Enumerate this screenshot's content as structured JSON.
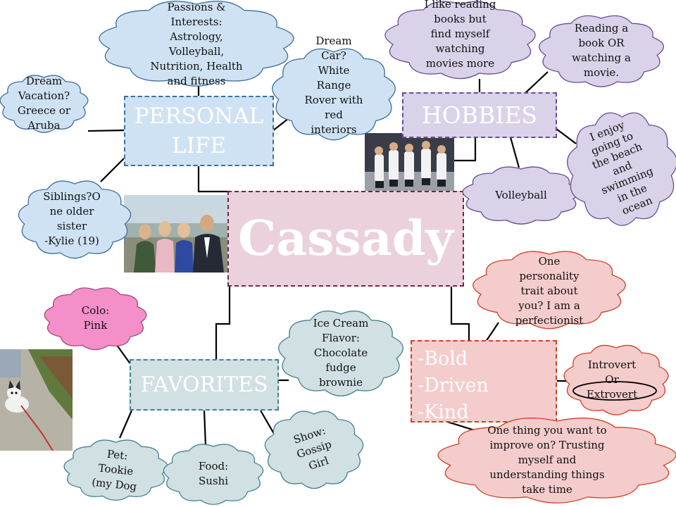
{
  "center": {
    "title": "Cassady"
  },
  "sections": {
    "personal": "PERSONAL\nLIFE",
    "hobbies": "HOBBIES",
    "favorites": "FAVORITES",
    "traits": "-Bold\n-Driven\n-Kind"
  },
  "clouds": {
    "passions": "Passions &\nInterests:\nAstrology,\nVolleyball,\nNutrition, Health\nand fitness",
    "dream_car": "Dream\nCar?\nWhite\nRange\nRover with\nred\ninteriors",
    "dream_vacation": "Dream\nVacation?\nGreece or\nAruba",
    "siblings": "Siblings?O\nne older\nsister\n-Kylie (19)",
    "reading_pref": "I like reading\nbooks but\nfind myself\nwatching\nmovies more",
    "book_or_movie": "Reading a\nbook OR\nwatching a\nmovie.",
    "volleyball": "Volleyball",
    "beach": "I enjoy\ngoing to\nthe beach\nand\nswimming\nin the\nocean",
    "color": "Colo:\nPink",
    "ice_cream": "Ice Cream\nFlavor:\nChocolate\nfudge\nbrownie",
    "pet": "Pet:\nTookie\n(my Dog",
    "food": "Food:\nSushi",
    "show": "Show:\nGossip\nGirl",
    "personality": "One\npersonality\ntrait about\nyou? I am a\nperfectionist",
    "introvert": "Introvert\nOr\nExtrovert",
    "improve": "One thing you want to\nimprove on? Trusting\nmyself and\nunderstanding things\ntake time"
  },
  "colors": {
    "blue": "#cfe2f3",
    "blue_border": "#3d6f99",
    "purple": "#d9d2e9",
    "purple_border": "#6a4c93",
    "pink_center": "#ead1dc",
    "pink_border": "#74274a",
    "gray_teal": "#d0e0e3",
    "gray_teal_border": "#45818e",
    "red": "#f4cccc",
    "red_border": "#cc4125",
    "hot_pink": "#f48fc9"
  }
}
